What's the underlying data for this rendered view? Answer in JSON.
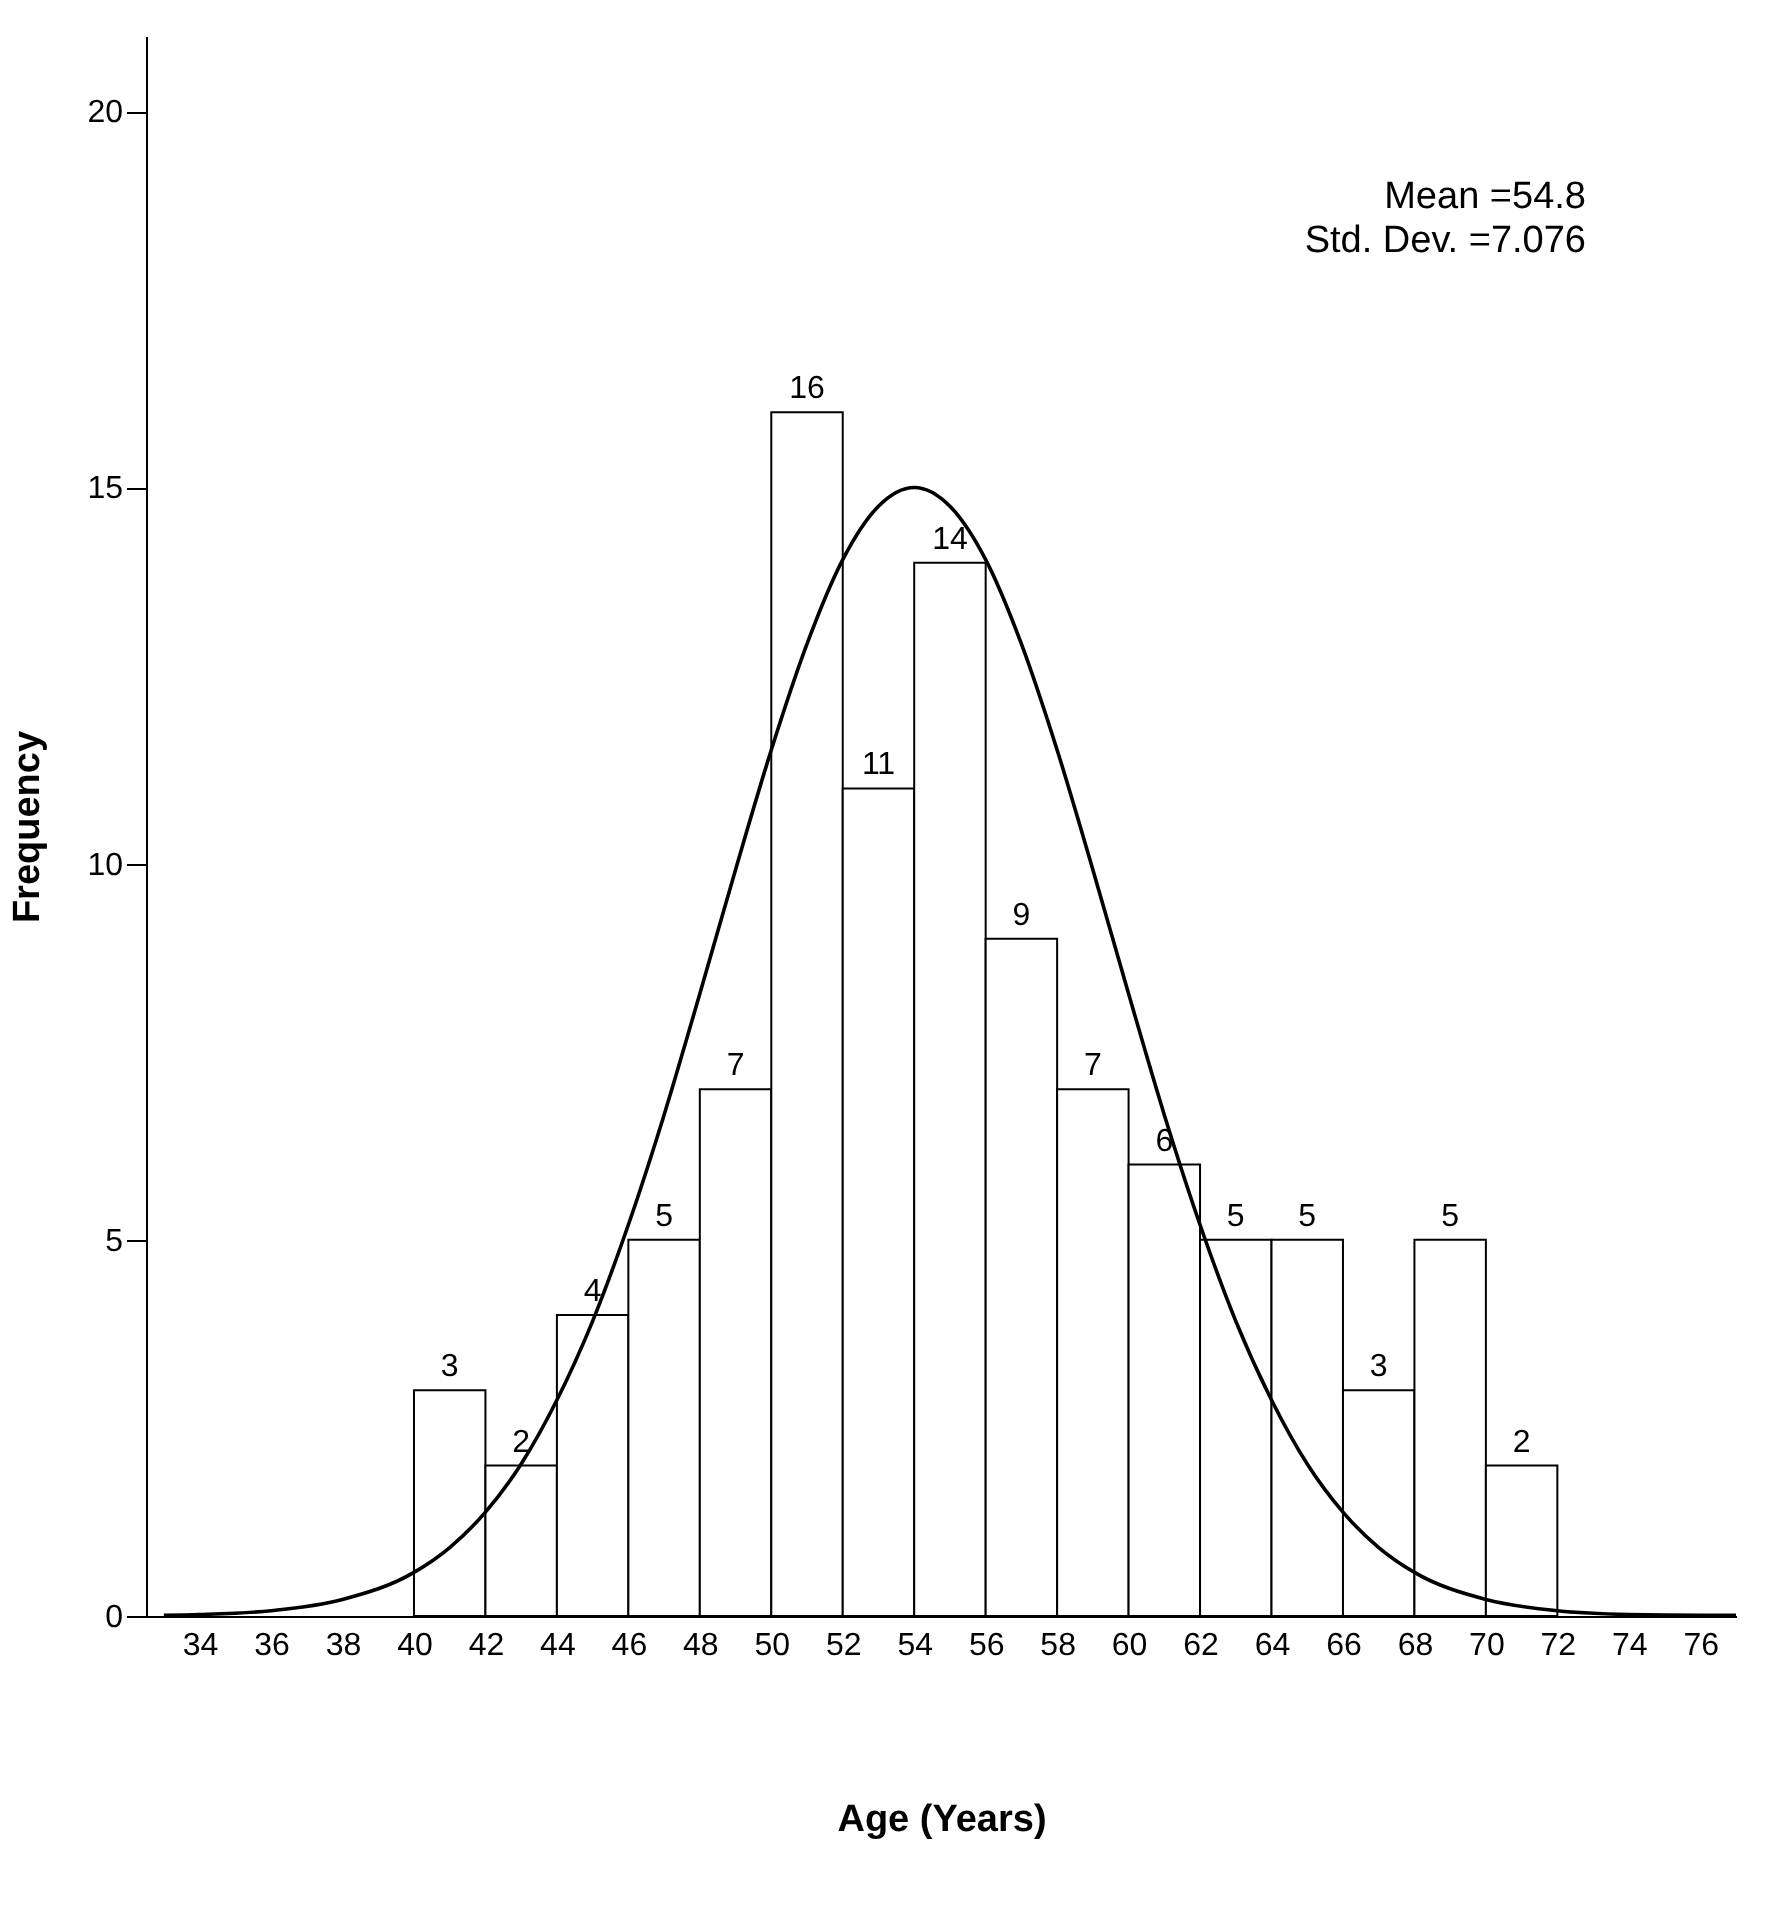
{
  "chart_data": {
    "type": "histogram",
    "xlabel": "Age (Years)",
    "ylabel": "Frequency",
    "bins": [
      40,
      42,
      44,
      46,
      48,
      50,
      52,
      54,
      56,
      58,
      60,
      62,
      64,
      66,
      68,
      70,
      72
    ],
    "values": [
      3,
      2,
      4,
      5,
      7,
      16,
      11,
      14,
      9,
      7,
      6,
      5,
      5,
      3,
      5,
      2
    ],
    "color": "#ffffff",
    "value_labels": [
      "3",
      "2",
      "4",
      "5",
      "7",
      "16",
      "11",
      "14",
      "9",
      "7",
      "6",
      "5",
      "5",
      "3",
      "5",
      "2"
    ],
    "series": [
      {
        "type": "line",
        "color": "#000000",
        "x": [
          33,
          34,
          36,
          38,
          40,
          41,
          42,
          43,
          44,
          45,
          46,
          47,
          48,
          49,
          50,
          51,
          52,
          53,
          54,
          55,
          56,
          57,
          58,
          59,
          60,
          61,
          62,
          63,
          64,
          65,
          66,
          67,
          68,
          70,
          72,
          74,
          76,
          77
        ],
        "values": [
          0.01,
          0.02,
          0.07,
          0.22,
          0.58,
          0.91,
          1.38,
          2.02,
          2.87,
          3.92,
          5.2,
          6.66,
          8.27,
          9.92,
          11.51,
          12.92,
          14.04,
          14.75,
          15,
          14.75,
          14.04,
          12.92,
          11.51,
          9.92,
          8.27,
          6.66,
          5.2,
          3.92,
          2.87,
          2.02,
          1.38,
          0.91,
          0.58,
          0.22,
          0.07,
          0.02,
          0.01,
          0.01
        ]
      }
    ],
    "xlim": [
      32.5,
      77
    ],
    "xticks": [
      34,
      36,
      38,
      40,
      42,
      44,
      46,
      48,
      50,
      52,
      54,
      56,
      58,
      60,
      62,
      64,
      66,
      68,
      70,
      72,
      74,
      76
    ],
    "ylim": [
      0,
      21
    ],
    "yticks": [
      0,
      5,
      10,
      15,
      20
    ],
    "annotations": [
      "Mean =54.8",
      "Std. Dev. =7.076"
    ]
  }
}
